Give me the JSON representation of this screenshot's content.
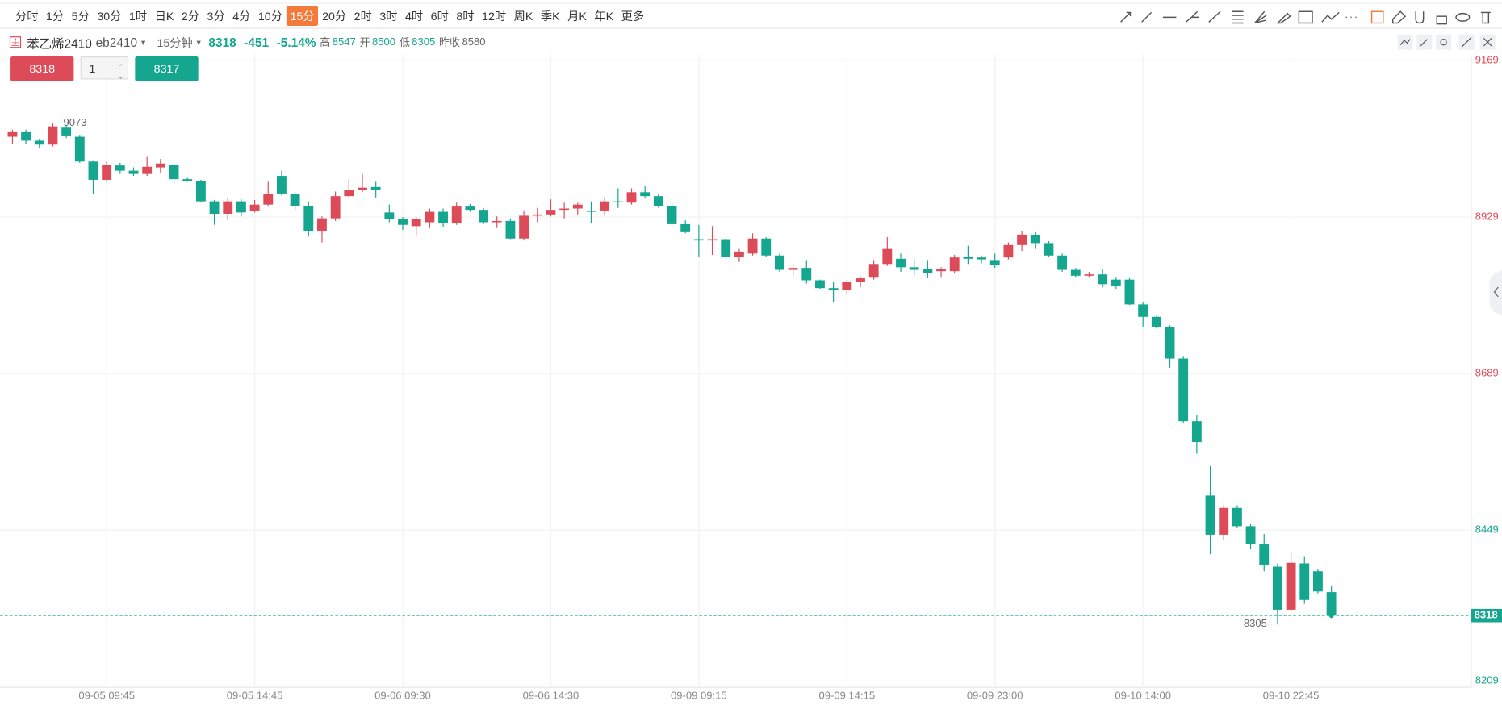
{
  "toolbar": {
    "periods": [
      {
        "label": "分时"
      },
      {
        "label": "1分"
      },
      {
        "label": "5分"
      },
      {
        "label": "30分"
      },
      {
        "label": "1时"
      },
      {
        "label": "日K"
      },
      {
        "label": "2分"
      },
      {
        "label": "3分"
      },
      {
        "label": "4分"
      },
      {
        "label": "10分"
      },
      {
        "label": "15分",
        "active": true
      },
      {
        "label": "20分"
      },
      {
        "label": "2时"
      },
      {
        "label": "3时"
      },
      {
        "label": "4时"
      },
      {
        "label": "6时"
      },
      {
        "label": "8时"
      },
      {
        "label": "12时"
      },
      {
        "label": "周K"
      },
      {
        "label": "季K"
      },
      {
        "label": "月K"
      },
      {
        "label": "年K"
      },
      {
        "label": "更多"
      }
    ]
  },
  "header": {
    "badge": "主",
    "name": "苯乙烯2410",
    "code": "eb2410",
    "period": "15分钟",
    "last": 8318,
    "change": -451,
    "change_pct": "-5.14%",
    "high_label": "高",
    "high": 8547,
    "open_label": "开",
    "open": 8500,
    "low_label": "低",
    "low": 8305,
    "prev_close_label": "昨收",
    "prev_close": 8580
  },
  "order": {
    "sell_price": 8318,
    "quantity": 1,
    "buy_price": 8317
  },
  "chart_data": {
    "type": "candlestick",
    "up_color": "#dd4b59",
    "down_color": "#14a68f",
    "grid": true,
    "ylim": [
      8208,
      9178
    ],
    "yticks": [
      9169,
      8929,
      8689,
      8449,
      8209
    ],
    "reference": 8580,
    "max_high": 9073,
    "min_low": 8305,
    "categories": [
      null,
      null,
      null,
      null,
      null,
      null,
      null,
      "09-05 09:45",
      null,
      null,
      null,
      null,
      null,
      null,
      null,
      null,
      null,
      null,
      "09-05 14:45",
      null,
      null,
      null,
      null,
      null,
      null,
      null,
      null,
      null,
      null,
      "09-06 09:30",
      null,
      null,
      null,
      null,
      null,
      null,
      null,
      null,
      null,
      null,
      "09-06 14:30",
      null,
      null,
      null,
      null,
      null,
      null,
      null,
      null,
      null,
      null,
      "09-09 09:15",
      null,
      null,
      null,
      null,
      null,
      null,
      null,
      null,
      null,
      null,
      "09-09 14:15",
      null,
      null,
      null,
      null,
      null,
      null,
      null,
      null,
      null,
      null,
      "09-09 23:00",
      null,
      null,
      null,
      null,
      null,
      null,
      null,
      null,
      null,
      null,
      "09-10 14:00",
      null,
      null,
      null,
      null,
      null,
      null,
      null,
      null,
      null,
      null,
      "09-10 22:45",
      null,
      null,
      null
    ],
    "open": [
      9052,
      9059,
      9046,
      9040,
      9066,
      9052,
      9014,
      8986,
      9008,
      9000,
      8995,
      9005,
      9009,
      8987,
      8984,
      8953,
      8934,
      8953,
      8939,
      8948,
      8992,
      8964,
      8946,
      8908,
      8927,
      8961,
      8970,
      8975,
      8936,
      8926,
      8915,
      8921,
      8937,
      8920,
      8945,
      8940,
      8921,
      8923,
      8896,
      8931,
      8933,
      8940,
      8942,
      8939,
      8939,
      8953,
      8951,
      8967,
      8961,
      8946,
      8918,
      8895,
      8893,
      8895,
      8868,
      8873,
      8896,
      8870,
      8848,
      8851,
      8832,
      8820,
      8817,
      8829,
      8836,
      8857,
      8865,
      8852,
      8849,
      8846,
      8846,
      8868,
      8867,
      8863,
      8867,
      8886,
      8902,
      8889,
      8870,
      8848,
      8839,
      8841,
      8833,
      8833,
      8795,
      8776,
      8760,
      8712,
      8616,
      8502,
      8442,
      8483,
      8455,
      8427,
      8393,
      8327,
      8398,
      8386,
      8354
    ],
    "high": [
      9063,
      9063,
      9049,
      9073,
      9070,
      9055,
      9016,
      9015,
      9012,
      9005,
      9021,
      9018,
      9012,
      8989,
      8986,
      8955,
      8958,
      8956,
      8955,
      8983,
      9000,
      8967,
      8953,
      8930,
      8968,
      8987,
      8995,
      8983,
      8948,
      8929,
      8929,
      8942,
      8942,
      8951,
      8949,
      8943,
      8930,
      8927,
      8939,
      8943,
      8956,
      8951,
      8951,
      8953,
      8959,
      8973,
      8973,
      8977,
      8965,
      8951,
      8924,
      8917,
      8915,
      8896,
      8880,
      8904,
      8898,
      8873,
      8857,
      8863,
      8833,
      8830,
      8832,
      8838,
      8863,
      8898,
      8873,
      8865,
      8863,
      8852,
      8871,
      8885,
      8870,
      8873,
      8890,
      8908,
      8907,
      8892,
      8873,
      8851,
      8845,
      8849,
      8836,
      8835,
      8798,
      8777,
      8763,
      8716,
      8625,
      8547,
      8487,
      8487,
      8458,
      8443,
      8398,
      8414,
      8409,
      8389,
      8364
    ],
    "low": [
      9041,
      9041,
      9034,
      9037,
      9050,
      9012,
      8965,
      8983,
      8995,
      8992,
      8992,
      8997,
      8981,
      8983,
      8952,
      8917,
      8924,
      8930,
      8936,
      8945,
      8962,
      8939,
      8899,
      8890,
      8923,
      8958,
      8967,
      8959,
      8921,
      8909,
      8901,
      8912,
      8914,
      8917,
      8937,
      8918,
      8912,
      8895,
      8893,
      8921,
      8930,
      8927,
      8933,
      8920,
      8931,
      8943,
      8948,
      8958,
      8943,
      8915,
      8904,
      8868,
      8871,
      8867,
      8860,
      8870,
      8868,
      8845,
      8836,
      8827,
      8819,
      8798,
      8811,
      8821,
      8833,
      8854,
      8845,
      8839,
      8835,
      8836,
      8843,
      8857,
      8858,
      8851,
      8864,
      8877,
      8880,
      8868,
      8845,
      8836,
      8836,
      8821,
      8819,
      8794,
      8761,
      8758,
      8698,
      8613,
      8566,
      8412,
      8434,
      8452,
      8420,
      8386,
      8305,
      8324,
      8336,
      8352,
      8314
    ],
    "close": [
      9059,
      9046,
      9040,
      9068,
      9054,
      9014,
      8986,
      9009,
      9000,
      8995,
      9006,
      9011,
      8987,
      8984,
      8953,
      8934,
      8953,
      8936,
      8948,
      8964,
      8965,
      8946,
      8908,
      8927,
      8961,
      8970,
      8974,
      8970,
      8926,
      8917,
      8926,
      8937,
      8920,
      8945,
      8940,
      8921,
      8923,
      8896,
      8931,
      8933,
      8940,
      8942,
      8948,
      8937,
      8953,
      8952,
      8967,
      8961,
      8946,
      8918,
      8907,
      8893,
      8895,
      8868,
      8876,
      8896,
      8870,
      8848,
      8851,
      8832,
      8820,
      8817,
      8829,
      8835,
      8857,
      8880,
      8852,
      8848,
      8843,
      8849,
      8867,
      8865,
      8864,
      8855,
      8886,
      8902,
      8889,
      8870,
      8848,
      8839,
      8841,
      8826,
      8823,
      8795,
      8776,
      8760,
      8712,
      8616,
      8584,
      8442,
      8483,
      8455,
      8428,
      8395,
      8327,
      8399,
      8342,
      8355,
      8318
    ]
  }
}
